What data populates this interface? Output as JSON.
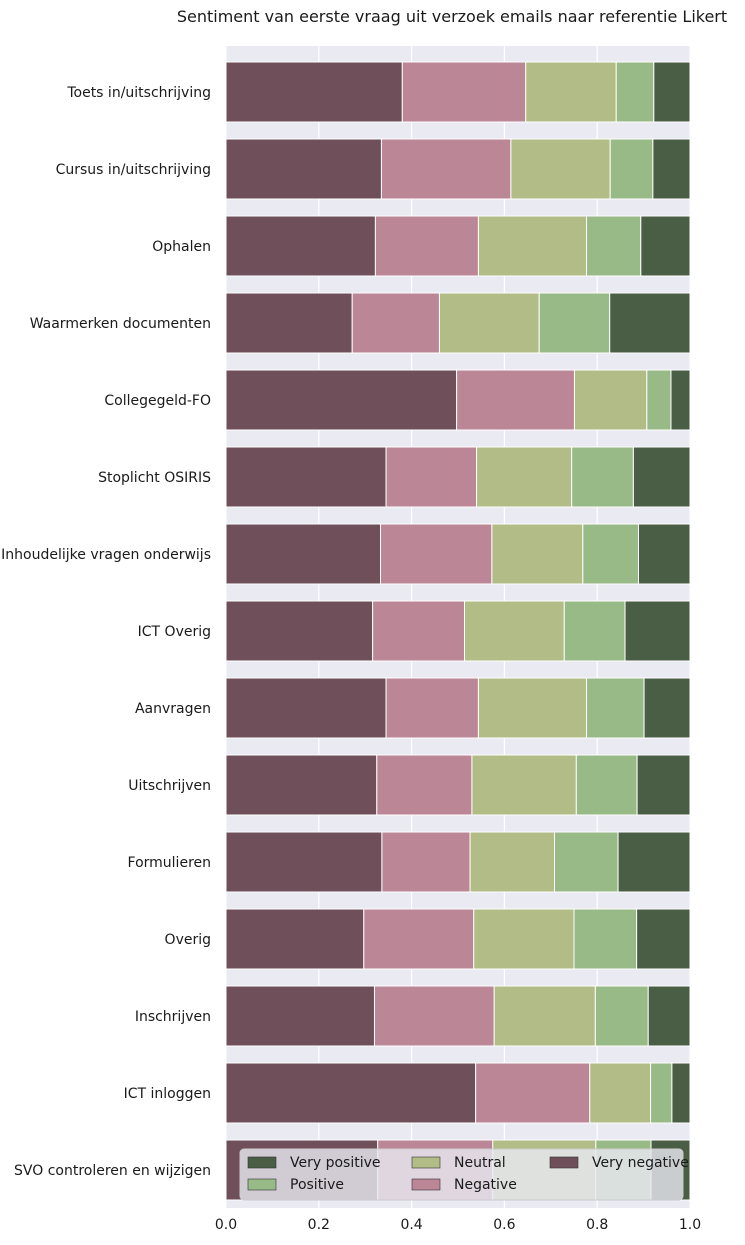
{
  "chart_data": {
    "type": "bar",
    "orientation": "horizontal",
    "stacked": true,
    "title": "Sentiment van eerste vraag uit verzoek emails naar referentie Likert",
    "xlabel": "",
    "ylabel": "",
    "xlim": [
      0,
      1.0
    ],
    "xticks": [
      "0.0",
      "0.2",
      "0.4",
      "0.6",
      "0.8",
      "1.0"
    ],
    "xtick_values": [
      0,
      0.2,
      0.4,
      0.6,
      0.8,
      1.0
    ],
    "grid": true,
    "legend_position": "bottom-center",
    "legend_order": [
      "Very positive",
      "Neutral",
      "Very negative",
      "Positive",
      "Negative"
    ],
    "categories": [
      "Toets in/uitschrijving",
      "Cursus in/uitschrijving",
      "Ophalen",
      "Waarmerken documenten",
      "Collegegeld-FO",
      "Stoplicht OSIRIS",
      "Inhoudelijke vragen onderwijs",
      "ICT Overig",
      "Aanvragen",
      "Uitschrijven",
      "Formulieren",
      "Overig",
      "Inschrijven",
      "ICT inloggen",
      "SVO controleren en wijzigen"
    ],
    "series": [
      {
        "name": "Very negative",
        "color": "#6f505a",
        "values": [
          0.38,
          0.335,
          0.322,
          0.272,
          0.497,
          0.345,
          0.333,
          0.316,
          0.345,
          0.325,
          0.336,
          0.297,
          0.32,
          0.538,
          0.327
        ]
      },
      {
        "name": "Negative",
        "color": "#bb8695",
        "values": [
          0.266,
          0.279,
          0.222,
          0.188,
          0.254,
          0.195,
          0.24,
          0.198,
          0.199,
          0.205,
          0.19,
          0.237,
          0.258,
          0.246,
          0.248
        ]
      },
      {
        "name": "Neutral",
        "color": "#b1bc87",
        "values": [
          0.195,
          0.214,
          0.233,
          0.215,
          0.156,
          0.205,
          0.196,
          0.215,
          0.233,
          0.225,
          0.182,
          0.216,
          0.218,
          0.131,
          0.222
        ]
      },
      {
        "name": "Positive",
        "color": "#97ba87",
        "values": [
          0.081,
          0.092,
          0.117,
          0.152,
          0.052,
          0.133,
          0.12,
          0.131,
          0.124,
          0.131,
          0.137,
          0.135,
          0.114,
          0.046,
          0.119
        ]
      },
      {
        "name": "Very positive",
        "color": "#4a5d45",
        "values": [
          0.078,
          0.08,
          0.106,
          0.173,
          0.041,
          0.122,
          0.111,
          0.14,
          0.099,
          0.114,
          0.155,
          0.115,
          0.09,
          0.039,
          0.084
        ]
      }
    ]
  }
}
